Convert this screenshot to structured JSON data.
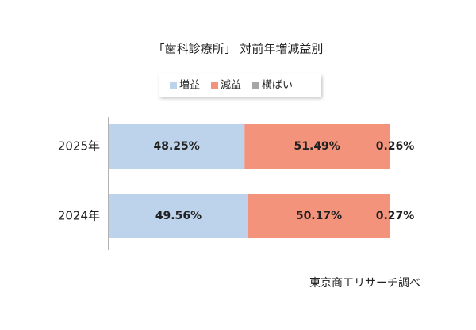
{
  "chart_data": {
    "type": "stacked_bar_horizontal",
    "title": "「歯科診療所」 対前年増減益別",
    "categories": [
      "2025年",
      "2024年"
    ],
    "series": [
      {
        "name": "増益",
        "color": "#bdd3ec",
        "values": [
          48.25,
          49.56
        ],
        "value_labels": [
          "48.25%",
          "49.56%"
        ]
      },
      {
        "name": "減益",
        "color": "#f4937b",
        "values": [
          51.49,
          50.17
        ],
        "value_labels": [
          "51.49%",
          "50.17%"
        ]
      },
      {
        "name": "横ばい",
        "color": "#a6a6a6",
        "values": [
          0.26,
          0.27
        ],
        "value_labels": [
          "0.26%",
          "0.27%"
        ]
      }
    ],
    "xlim": [
      0,
      100
    ],
    "source": "東京商工リサーチ調べ"
  }
}
